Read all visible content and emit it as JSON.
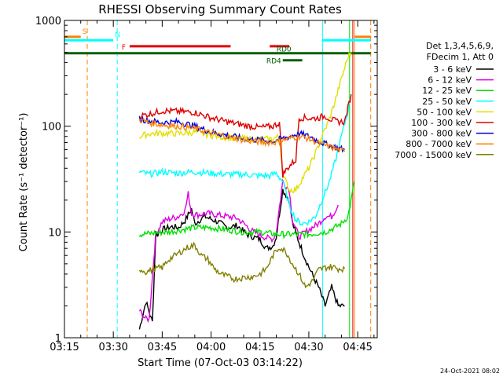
{
  "chart_data": {
    "type": "line",
    "title": "RHESSI Observing Summary Count Rates",
    "xlabel": "Start Time (07-Oct-03 03:14:22)",
    "ylabel": "Count Rate (s⁻¹ detector⁻¹)",
    "yscale": "log",
    "ylim": [
      1,
      1000
    ],
    "xlim_minutes": [
      0,
      96
    ],
    "x_ticks": [
      {
        "label": "03:15",
        "t": 0
      },
      {
        "label": "03:30",
        "t": 15
      },
      {
        "label": "03:45",
        "t": 30
      },
      {
        "label": "04:00",
        "t": 45
      },
      {
        "label": "04:15",
        "t": 60
      },
      {
        "label": "04:30",
        "t": 75
      },
      {
        "label": "04:45",
        "t": 90
      }
    ],
    "y_ticks": [
      {
        "label": "1",
        "v": 1
      },
      {
        "label": "10",
        "v": 10
      },
      {
        "label": "100",
        "v": 100
      },
      {
        "label": "1000",
        "v": 1000
      }
    ],
    "legend_header": [
      "Det 1,3,4,5,6,9,",
      "FDecim 1, Att 0"
    ],
    "legend_placement": "right",
    "series": [
      {
        "name": "3 - 6 keV",
        "color": "#000000",
        "points": [
          [
            23,
            1.2
          ],
          [
            25,
            2.2
          ],
          [
            27,
            1.4
          ],
          [
            28,
            9.2
          ],
          [
            30,
            10.5
          ],
          [
            33,
            11.2
          ],
          [
            35,
            11
          ],
          [
            37,
            12.8
          ],
          [
            39,
            16.5
          ],
          [
            40,
            12
          ],
          [
            43,
            14
          ],
          [
            47,
            12.5
          ],
          [
            50,
            11
          ],
          [
            53,
            11.5
          ],
          [
            56,
            9.5
          ],
          [
            60,
            8.5
          ],
          [
            62,
            7
          ],
          [
            64,
            7.4
          ],
          [
            65,
            9
          ],
          [
            67,
            25
          ],
          [
            69,
            20
          ],
          [
            70,
            12
          ],
          [
            72,
            8
          ],
          [
            74,
            5.5
          ],
          [
            76,
            4
          ],
          [
            78,
            3
          ],
          [
            80,
            2
          ],
          [
            82,
            3
          ],
          [
            84,
            2
          ],
          [
            86,
            2
          ]
        ]
      },
      {
        "name": "6 - 12 keV",
        "color": "#e000e0",
        "points": [
          [
            23,
            1.8
          ],
          [
            25,
            1.5
          ],
          [
            26,
            1.5
          ],
          [
            28,
            9.5
          ],
          [
            30,
            12.5
          ],
          [
            33,
            13.5
          ],
          [
            35,
            14
          ],
          [
            37,
            16
          ],
          [
            38,
            23
          ],
          [
            39,
            15
          ],
          [
            41,
            14.5
          ],
          [
            44,
            15
          ],
          [
            47,
            14.5
          ],
          [
            50,
            14
          ],
          [
            53,
            13.5
          ],
          [
            55,
            12
          ],
          [
            58,
            10
          ],
          [
            62,
            8.8
          ],
          [
            64,
            8.6
          ],
          [
            65,
            10
          ],
          [
            67,
            30
          ],
          [
            69,
            25
          ],
          [
            70,
            13
          ],
          [
            72,
            9
          ],
          [
            74,
            10
          ],
          [
            76,
            11
          ],
          [
            78,
            12
          ],
          [
            80,
            14
          ],
          [
            82,
            14
          ],
          [
            84,
            18
          ]
        ]
      },
      {
        "name": "12 - 25 keV",
        "color": "#00e000",
        "points": [
          [
            23,
            9.5
          ],
          [
            28,
            9.8
          ],
          [
            32,
            10
          ],
          [
            36,
            10.5
          ],
          [
            40,
            11
          ],
          [
            45,
            11
          ],
          [
            50,
            10.5
          ],
          [
            55,
            10
          ],
          [
            60,
            10
          ],
          [
            65,
            9.5
          ],
          [
            70,
            9.5
          ],
          [
            75,
            9.5
          ],
          [
            80,
            10
          ],
          [
            83,
            11
          ],
          [
            85,
            12
          ],
          [
            87,
            14
          ],
          [
            88,
            20
          ],
          [
            89,
            30
          ]
        ]
      },
      {
        "name": "25 - 50 keV",
        "color": "#00ffff",
        "points": [
          [
            23,
            37
          ],
          [
            26,
            35
          ],
          [
            30,
            37
          ],
          [
            35,
            36
          ],
          [
            40,
            37
          ],
          [
            45,
            36
          ],
          [
            50,
            35
          ],
          [
            55,
            35
          ],
          [
            60,
            34
          ],
          [
            63,
            34
          ],
          [
            65,
            36
          ],
          [
            67,
            30
          ],
          [
            69,
            18
          ],
          [
            71,
            13
          ],
          [
            73,
            12
          ],
          [
            75,
            12.5
          ],
          [
            77,
            14
          ],
          [
            79,
            20
          ],
          [
            81,
            28
          ],
          [
            83,
            45
          ],
          [
            85,
            80
          ],
          [
            87,
            140
          ],
          [
            88,
            200
          ]
        ]
      },
      {
        "name": "50 - 100 keV",
        "color": "#e0e000",
        "points": [
          [
            23,
            80
          ],
          [
            26,
            85
          ],
          [
            30,
            86
          ],
          [
            35,
            85
          ],
          [
            40,
            88
          ],
          [
            45,
            82
          ],
          [
            50,
            78
          ],
          [
            55,
            76
          ],
          [
            60,
            75
          ],
          [
            64,
            76
          ],
          [
            66,
            80
          ],
          [
            67,
            35
          ],
          [
            69,
            25
          ],
          [
            71,
            25
          ],
          [
            73,
            32
          ],
          [
            75,
            40
          ],
          [
            77,
            55
          ],
          [
            79,
            80
          ],
          [
            81,
            110
          ],
          [
            83,
            170
          ],
          [
            85,
            280
          ],
          [
            87,
            450
          ],
          [
            88,
            500
          ]
        ]
      },
      {
        "name": "100 - 300 keV",
        "color": "#e00000",
        "points": [
          [
            23,
            125
          ],
          [
            26,
            130
          ],
          [
            30,
            140
          ],
          [
            35,
            138
          ],
          [
            40,
            135
          ],
          [
            45,
            120
          ],
          [
            50,
            110
          ],
          [
            55,
            102
          ],
          [
            60,
            97
          ],
          [
            64,
            100
          ],
          [
            66,
            108
          ],
          [
            67,
            35
          ],
          [
            69,
            42
          ],
          [
            71,
            48
          ],
          [
            72,
            120
          ],
          [
            74,
            120
          ],
          [
            76,
            118
          ],
          [
            78,
            120
          ],
          [
            80,
            125
          ],
          [
            82,
            115
          ],
          [
            84,
            110
          ],
          [
            86,
            110
          ],
          [
            88,
            200
          ]
        ]
      },
      {
        "name": "300 - 800 keV",
        "color": "#0000e0",
        "points": [
          [
            23,
            118
          ],
          [
            26,
            112
          ],
          [
            30,
            108
          ],
          [
            35,
            110
          ],
          [
            40,
            100
          ],
          [
            45,
            88
          ],
          [
            50,
            82
          ],
          [
            55,
            76
          ],
          [
            60,
            74
          ],
          [
            64,
            72
          ],
          [
            66,
            75
          ],
          [
            68,
            78
          ],
          [
            70,
            82
          ],
          [
            72,
            85
          ],
          [
            74,
            82
          ],
          [
            76,
            78
          ],
          [
            78,
            72
          ],
          [
            80,
            68
          ],
          [
            82,
            65
          ],
          [
            84,
            62
          ],
          [
            86,
            60
          ]
        ]
      },
      {
        "name": "800 - 7000 keV",
        "color": "#ff8000",
        "points": [
          [
            23,
            115
          ],
          [
            26,
            108
          ],
          [
            30,
            103
          ],
          [
            35,
            100
          ],
          [
            40,
            95
          ],
          [
            45,
            86
          ],
          [
            50,
            80
          ],
          [
            55,
            74
          ],
          [
            60,
            71
          ],
          [
            64,
            70
          ],
          [
            66,
            72
          ],
          [
            68,
            75
          ],
          [
            70,
            78
          ],
          [
            72,
            80
          ],
          [
            74,
            78
          ],
          [
            76,
            74
          ],
          [
            78,
            69
          ],
          [
            80,
            66
          ],
          [
            82,
            63
          ],
          [
            84,
            60
          ],
          [
            86,
            57
          ]
        ]
      },
      {
        "name": "7000 - 15000 keV",
        "color": "#808000",
        "points": [
          [
            23,
            4.5
          ],
          [
            25,
            4.2
          ],
          [
            28,
            4.5
          ],
          [
            30,
            4.6
          ],
          [
            32,
            5.5
          ],
          [
            34,
            6
          ],
          [
            36,
            6.6
          ],
          [
            38,
            7.2
          ],
          [
            40,
            7.5
          ],
          [
            42,
            6
          ],
          [
            44,
            5.5
          ],
          [
            46,
            4.5
          ],
          [
            48,
            4
          ],
          [
            50,
            3.8
          ],
          [
            52,
            3.6
          ],
          [
            55,
            3.7
          ],
          [
            58,
            3.8
          ],
          [
            60,
            4
          ],
          [
            62,
            4.5
          ],
          [
            64,
            6
          ],
          [
            66,
            7.2
          ],
          [
            68,
            6.5
          ],
          [
            70,
            5
          ],
          [
            72,
            4
          ],
          [
            74,
            3
          ],
          [
            76,
            3.4
          ],
          [
            78,
            4.4
          ],
          [
            80,
            4.6
          ],
          [
            82,
            4.7
          ],
          [
            84,
            4.5
          ],
          [
            86,
            4.5
          ]
        ]
      }
    ],
    "flag_bars": [
      {
        "label": "S",
        "color": "#ff8000",
        "level": 700,
        "segments": [
          [
            -8,
            5
          ],
          [
            89,
            94
          ]
        ]
      },
      {
        "label": "N",
        "color": "#00ffff",
        "level": 650,
        "segments": [
          [
            -8,
            15
          ],
          [
            79,
            94
          ]
        ]
      },
      {
        "label": "F",
        "color": "#e00000",
        "level": 570,
        "segments": [
          [
            20,
            51
          ],
          [
            63,
            69
          ]
        ]
      },
      {
        "label": "RD0",
        "color": "#006000",
        "level": 490,
        "segments": [
          [
            -8,
            94
          ]
        ]
      },
      {
        "label": "RD4",
        "color": "#006000",
        "level": 420,
        "segments": [
          [
            67,
            73
          ]
        ]
      }
    ],
    "vertical_lines": [
      {
        "t": 7,
        "color": "#ff8000",
        "dashed": true
      },
      {
        "t": 16.2,
        "color": "#00ffff",
        "dashed": true
      },
      {
        "t": 79.2,
        "color": "#00ffff",
        "dashed": false
      },
      {
        "t": 87.5,
        "color": "#00e000",
        "dashed": false
      },
      {
        "t": 88.5,
        "color": "#e00000",
        "dashed": false
      },
      {
        "t": 89,
        "color": "#ff8000",
        "dashed": false
      },
      {
        "t": 94,
        "color": "#ff8000",
        "dashed": true
      }
    ],
    "footer_date": "24-Oct-2021 08:02"
  }
}
